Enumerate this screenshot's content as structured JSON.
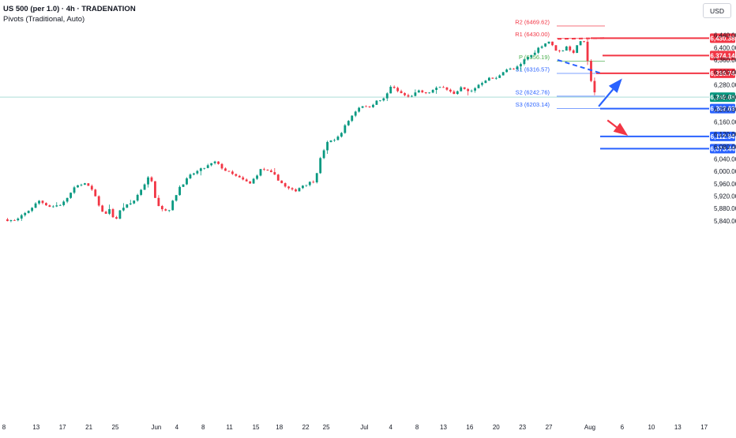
{
  "header": {
    "title": "US 500 (per 1.0) · 4h · TRADENATION",
    "subtitle": "Pivots (Traditional, Auto)",
    "currency": "USD"
  },
  "colors": {
    "bull": "#089981",
    "bear": "#f23645",
    "resistance": "#f23645",
    "support": "#2962ff",
    "current": "#089981",
    "pivot": "#4caf50",
    "axis_text": "#131722",
    "grid": "#f0f3fa"
  },
  "chart_data": {
    "type": "candlestick",
    "symbol": "US 500",
    "timeframe": "4h",
    "ylim": [
      5820,
      6490
    ],
    "y_ticks": [
      5840,
      5880,
      5920,
      5960,
      6000,
      6040,
      6080,
      6120,
      6160,
      6200,
      6240,
      6280,
      6320,
      6360,
      6400,
      6440
    ],
    "x_ticks": [
      {
        "label": "8",
        "t": 0
      },
      {
        "label": "13",
        "t": 5.5
      },
      {
        "label": "17",
        "t": 10
      },
      {
        "label": "21",
        "t": 14.5
      },
      {
        "label": "25",
        "t": 19
      },
      {
        "label": "Jun",
        "t": 26
      },
      {
        "label": "4",
        "t": 29.5
      },
      {
        "label": "8",
        "t": 34
      },
      {
        "label": "11",
        "t": 38.5
      },
      {
        "label": "15",
        "t": 43
      },
      {
        "label": "18",
        "t": 47
      },
      {
        "label": "22",
        "t": 51.5
      },
      {
        "label": "25",
        "t": 55
      },
      {
        "label": "Jul",
        "t": 61.5
      },
      {
        "label": "4",
        "t": 66
      },
      {
        "label": "8",
        "t": 70.5
      },
      {
        "label": "13",
        "t": 75
      },
      {
        "label": "16",
        "t": 79.5
      },
      {
        "label": "20",
        "t": 84
      },
      {
        "label": "23",
        "t": 88.5
      },
      {
        "label": "27",
        "t": 93
      },
      {
        "label": "Aug",
        "t": 100
      },
      {
        "label": "6",
        "t": 105.5
      },
      {
        "label": "10",
        "t": 110.5
      },
      {
        "label": "13",
        "t": 115
      },
      {
        "label": "17",
        "t": 119.5
      }
    ],
    "close_path": [
      [
        0,
        5845
      ],
      [
        2,
        5840
      ],
      [
        4,
        5870
      ],
      [
        6,
        5905
      ],
      [
        8,
        5885
      ],
      [
        10,
        5895
      ],
      [
        12,
        5945
      ],
      [
        13.5,
        5965
      ],
      [
        15,
        5940
      ],
      [
        16,
        5900
      ],
      [
        17,
        5860
      ],
      [
        18,
        5875
      ],
      [
        19,
        5840
      ],
      [
        20,
        5880
      ],
      [
        22,
        5900
      ],
      [
        24,
        5960
      ],
      [
        25,
        5990
      ],
      [
        26,
        5900
      ],
      [
        27,
        5880
      ],
      [
        28,
        5870
      ],
      [
        30,
        5950
      ],
      [
        32,
        5990
      ],
      [
        34,
        6010
      ],
      [
        36,
        6030
      ],
      [
        38,
        6000
      ],
      [
        40,
        5980
      ],
      [
        42,
        5960
      ],
      [
        44,
        6010
      ],
      [
        46,
        5990
      ],
      [
        48,
        5950
      ],
      [
        49.5,
        5935
      ],
      [
        51,
        5955
      ],
      [
        53,
        5970
      ],
      [
        54,
        6040
      ],
      [
        55,
        6090
      ],
      [
        57,
        6110
      ],
      [
        58,
        6140
      ],
      [
        59,
        6170
      ],
      [
        60,
        6195
      ],
      [
        61,
        6215
      ],
      [
        62,
        6205
      ],
      [
        63.5,
        6225
      ],
      [
        65,
        6235
      ],
      [
        66,
        6275
      ],
      [
        67.5,
        6255
      ],
      [
        69,
        6240
      ],
      [
        71,
        6260
      ],
      [
        72,
        6250
      ],
      [
        73.5,
        6265
      ],
      [
        75,
        6275
      ],
      [
        76,
        6260
      ],
      [
        77,
        6245
      ],
      [
        78,
        6270
      ],
      [
        79.5,
        6255
      ],
      [
        81,
        6280
      ],
      [
        82.5,
        6300
      ],
      [
        84,
        6300
      ],
      [
        85.5,
        6330
      ],
      [
        87,
        6330
      ],
      [
        88,
        6340
      ],
      [
        89,
        6365
      ],
      [
        90,
        6375
      ],
      [
        91,
        6395
      ],
      [
        92,
        6410
      ],
      [
        93,
        6420
      ],
      [
        94,
        6395
      ],
      [
        95,
        6385
      ],
      [
        96,
        6405
      ],
      [
        97,
        6380
      ],
      [
        98,
        6410
      ],
      [
        98.6,
        6428
      ],
      [
        99,
        6415
      ],
      [
        99.4,
        6370
      ],
      [
        99.8,
        6325
      ],
      [
        100.2,
        6300
      ],
      [
        100.6,
        6270
      ],
      [
        101,
        6245
      ],
      [
        101.3,
        6232
      ]
    ],
    "current_price": 6239.88,
    "pivots": [
      {
        "label": "R2 (6469.62)",
        "value": 6469.62,
        "kind": "resistance"
      },
      {
        "label": "R1 (6430.00)",
        "value": 6430.0,
        "kind": "resistance"
      },
      {
        "label": "P (6356.19)",
        "value": 6356.19,
        "kind": "pivot"
      },
      {
        "label": "S1 (6316.57)",
        "value": 6316.57,
        "kind": "support"
      },
      {
        "label": "S2 (6242.76)",
        "value": 6242.76,
        "kind": "support"
      },
      {
        "label": "S3 (6203.14)",
        "value": 6203.14,
        "kind": "support"
      }
    ],
    "horizontal_levels": [
      {
        "value": 6430.38,
        "label": "6,430.38",
        "color": "red"
      },
      {
        "value": 6374.14,
        "label": "6,374.14",
        "color": "red"
      },
      {
        "value": 6316.74,
        "label": "6,316.74",
        "color": "red"
      },
      {
        "value": 6239.88,
        "label": "6,239.88",
        "color": "green"
      },
      {
        "value": 6202.63,
        "label": "6,202.63",
        "color": "blue"
      },
      {
        "value": 6112.94,
        "label": "6,112.94",
        "color": "blue"
      },
      {
        "value": 6073.44,
        "label": "6,073.44",
        "color": "blue"
      }
    ],
    "arrows": [
      {
        "direction": "up",
        "color": "blue",
        "from": [
          101.5,
          6210
        ],
        "to": [
          105.5,
          6300
        ]
      },
      {
        "direction": "down",
        "color": "red",
        "from": [
          103,
          6165
        ],
        "to": [
          106.5,
          6115
        ]
      }
    ]
  }
}
